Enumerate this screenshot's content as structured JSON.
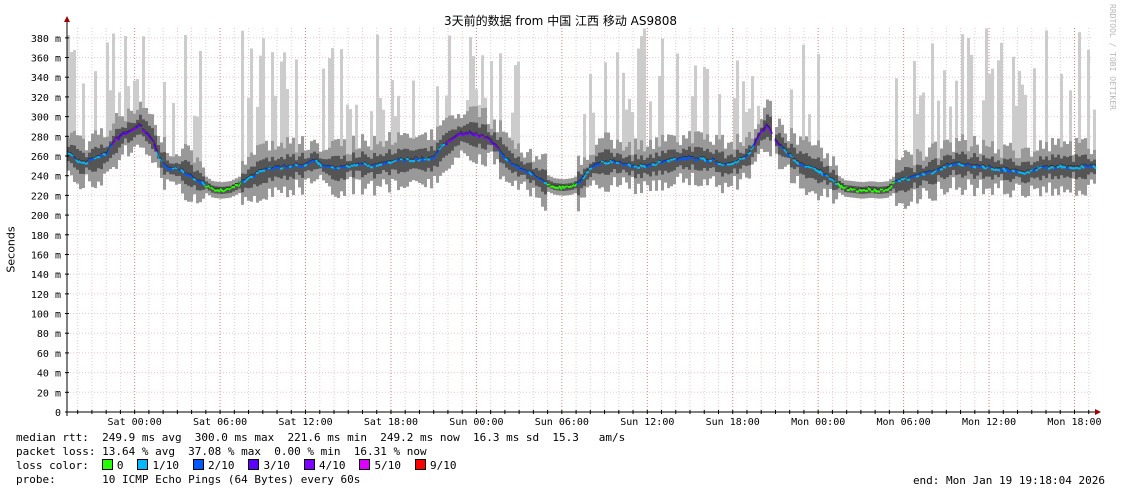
{
  "chart_data": {
    "type": "line",
    "title": "3天前的数据 from 中国 江西 移动 AS9808",
    "ylabel": "Seconds",
    "ylim": [
      0,
      0.39
    ],
    "yticks": [
      {
        "value": 0,
        "label": "0"
      },
      {
        "value": 0.02,
        "label": "20 m"
      },
      {
        "value": 0.04,
        "label": "40 m"
      },
      {
        "value": 0.06,
        "label": "60 m"
      },
      {
        "value": 0.08,
        "label": "80 m"
      },
      {
        "value": 0.1,
        "label": "100 m"
      },
      {
        "value": 0.12,
        "label": "120 m"
      },
      {
        "value": 0.14,
        "label": "140 m"
      },
      {
        "value": 0.16,
        "label": "160 m"
      },
      {
        "value": 0.18,
        "label": "180 m"
      },
      {
        "value": 0.2,
        "label": "200 m"
      },
      {
        "value": 0.22,
        "label": "220 m"
      },
      {
        "value": 0.24,
        "label": "240 m"
      },
      {
        "value": 0.26,
        "label": "260 m"
      },
      {
        "value": 0.28,
        "label": "280 m"
      },
      {
        "value": 0.3,
        "label": "300 m"
      },
      {
        "value": 0.32,
        "label": "320 m"
      },
      {
        "value": 0.34,
        "label": "340 m"
      },
      {
        "value": 0.36,
        "label": "360 m"
      },
      {
        "value": 0.38,
        "label": "380 m"
      }
    ],
    "xticks": [
      "Sat 00:00",
      "Sat 06:00",
      "Sat 12:00",
      "Sat 18:00",
      "Sun 00:00",
      "Sun 06:00",
      "Sun 12:00",
      "Sun 18:00",
      "Mon 00:00",
      "Mon 06:00",
      "Mon 12:00",
      "Mon 18:00"
    ],
    "x_start_hours_before_sat0": 4.75,
    "x_end_hours_after_mon18": 1.3,
    "median_rtt_ms": [
      [
        -4.5,
        262
      ],
      [
        -3.8,
        252
      ],
      [
        -3.2,
        255
      ],
      [
        -2.6,
        258
      ],
      [
        -2.0,
        262
      ],
      [
        -1.4,
        275
      ],
      [
        -0.8,
        283
      ],
      [
        -0.2,
        285
      ],
      [
        0.3,
        292
      ],
      [
        0.8,
        284
      ],
      [
        1.3,
        275
      ],
      [
        1.8,
        255
      ],
      [
        2.4,
        247
      ],
      [
        3.0,
        246
      ],
      [
        3.6,
        243
      ],
      [
        4.2,
        236
      ],
      [
        4.8,
        232
      ],
      [
        5.4,
        226
      ],
      [
        6.0,
        225
      ],
      [
        6.6,
        226
      ],
      [
        7.2,
        230
      ],
      [
        7.8,
        236
      ],
      [
        8.4,
        241
      ],
      [
        9.0,
        245
      ],
      [
        9.6,
        247
      ],
      [
        10.2,
        248
      ],
      [
        10.8,
        249
      ],
      [
        11.4,
        250
      ],
      [
        12.0,
        251
      ],
      [
        12.6,
        256
      ],
      [
        13.2,
        250
      ],
      [
        13.8,
        248
      ],
      [
        14.4,
        247
      ],
      [
        15.0,
        250
      ],
      [
        15.6,
        252
      ],
      [
        16.2,
        251
      ],
      [
        16.8,
        250
      ],
      [
        17.4,
        253
      ],
      [
        18.0,
        254
      ],
      [
        18.6,
        255
      ],
      [
        19.2,
        256
      ],
      [
        19.8,
        257
      ],
      [
        20.4,
        256
      ],
      [
        21.0,
        258
      ],
      [
        21.6,
        270
      ],
      [
        22.2,
        276
      ],
      [
        22.8,
        282
      ],
      [
        23.4,
        283
      ],
      [
        24.0,
        281
      ],
      [
        24.6,
        279
      ],
      [
        25.2,
        274
      ],
      [
        25.8,
        262
      ],
      [
        26.4,
        253
      ],
      [
        27.0,
        248
      ],
      [
        27.6,
        244
      ],
      [
        28.2,
        238
      ],
      [
        28.8,
        233
      ],
      [
        29.4,
        229
      ],
      [
        30.0,
        228
      ],
      [
        30.6,
        229
      ],
      [
        31.2,
        233
      ],
      [
        31.8,
        244
      ],
      [
        32.4,
        252
      ],
      [
        33.0,
        254
      ],
      [
        33.6,
        253
      ],
      [
        34.2,
        252
      ],
      [
        34.8,
        250
      ],
      [
        35.4,
        249
      ],
      [
        36.0,
        250
      ],
      [
        36.6,
        252
      ],
      [
        37.2,
        254
      ],
      [
        37.8,
        256
      ],
      [
        38.4,
        257
      ],
      [
        39.0,
        258
      ],
      [
        39.6,
        257
      ],
      [
        40.2,
        256
      ],
      [
        40.8,
        255
      ],
      [
        41.4,
        250
      ],
      [
        42.0,
        253
      ],
      [
        42.6,
        256
      ],
      [
        43.2,
        262
      ],
      [
        43.8,
        280
      ],
      [
        44.4,
        292
      ],
      [
        45.0,
        275
      ],
      [
        45.6,
        266
      ],
      [
        46.2,
        258
      ],
      [
        46.8,
        252
      ],
      [
        47.4,
        248
      ],
      [
        48.0,
        245
      ],
      [
        48.6,
        240
      ],
      [
        49.2,
        233
      ],
      [
        49.8,
        227
      ],
      [
        50.4,
        226
      ],
      [
        51.0,
        225
      ],
      [
        51.6,
        226
      ],
      [
        52.2,
        225
      ],
      [
        52.8,
        226
      ],
      [
        53.4,
        233
      ],
      [
        54.0,
        236
      ],
      [
        54.6,
        238
      ],
      [
        55.2,
        241
      ],
      [
        55.8,
        243
      ],
      [
        56.4,
        246
      ],
      [
        57.0,
        250
      ],
      [
        57.6,
        252
      ],
      [
        58.2,
        251
      ],
      [
        58.8,
        250
      ],
      [
        59.4,
        249
      ],
      [
        60.0,
        248
      ],
      [
        60.6,
        247
      ],
      [
        61.2,
        246
      ],
      [
        61.8,
        245
      ],
      [
        62.4,
        243
      ],
      [
        63.0,
        245
      ],
      [
        63.6,
        248
      ],
      [
        64.2,
        249
      ]
    ],
    "legend": [
      "0",
      "1/10",
      "2/10",
      "3/10",
      "4/10",
      "5/10",
      "9/10"
    ]
  },
  "colors": {
    "grid_minor": "#e6c8c8",
    "grid_major": "#d08080",
    "smoke_light": "#cccccc",
    "smoke_mid": "#999999",
    "smoke_dark": "#555555",
    "axis_arrow": "#a00000",
    "loss_0": "#26ff00",
    "loss_1": "#00b8ff",
    "loss_2": "#0059ff",
    "loss_3": "#5e00ff",
    "loss_4": "#7e00ff",
    "loss_5": "#dd00ff",
    "loss_9": "#ff0000"
  },
  "stats": {
    "median_line": "median rtt:  249.9 ms avg  300.0 ms max  221.6 ms min  249.2 ms now  16.3 ms sd  15.3   am/s",
    "loss_line": "packet loss: 13.64 % avg  37.08 % max  0.00 % min  16.31 % now",
    "loss_color_label": "loss color:",
    "probe_line": "probe:       10 ICMP Echo Pings (64 Bytes) every 60s",
    "end_text": "end: Mon Jan 19 19:18:04 2026"
  },
  "watermark": "RRDTOOL / TOBI OETIKER"
}
